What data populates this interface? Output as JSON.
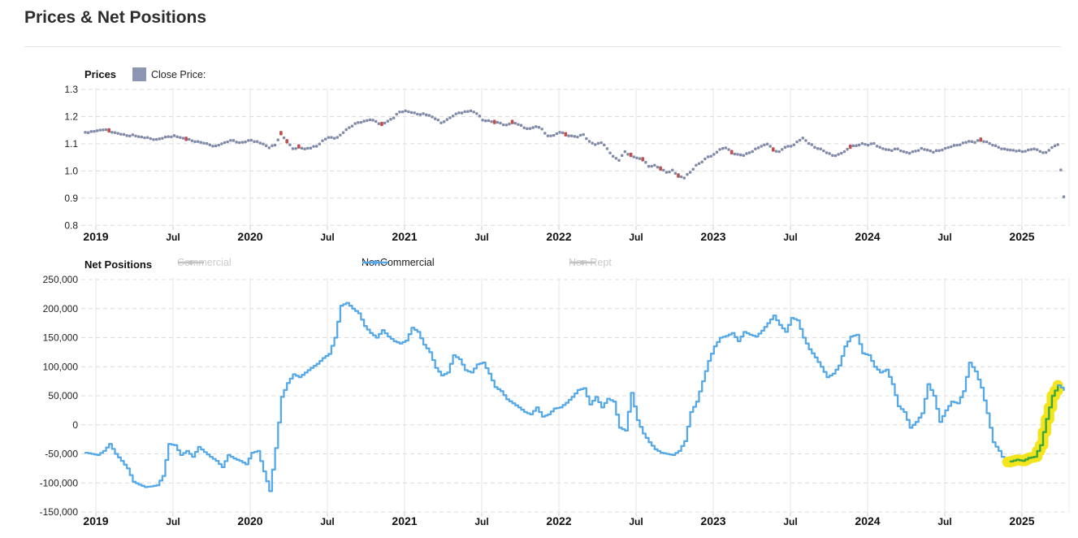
{
  "page": {
    "title": "Prices & Net Positions"
  },
  "prices_chart": {
    "label": "Prices",
    "close_price_label": "Close Price:",
    "legend_swatch_color": "#8C96B2",
    "y_tick_labels": [
      "1.3",
      "1.2",
      "1.1",
      "1.0",
      "0.9",
      "0.8"
    ],
    "x_ticks": [
      {
        "label": "2019",
        "major": true
      },
      {
        "label": "Jul",
        "major": false
      },
      {
        "label": "2020",
        "major": true
      },
      {
        "label": "Jul",
        "major": false
      },
      {
        "label": "2021",
        "major": true
      },
      {
        "label": "Jul",
        "major": false
      },
      {
        "label": "2022",
        "major": true
      },
      {
        "label": "Jul",
        "major": false
      },
      {
        "label": "2023",
        "major": true
      },
      {
        "label": "Jul",
        "major": false
      },
      {
        "label": "2024",
        "major": true
      },
      {
        "label": "Jul",
        "major": false
      },
      {
        "label": "2025",
        "major": true
      }
    ]
  },
  "positions_chart": {
    "label": "Net Positions",
    "legend": [
      {
        "label": "Commercial",
        "color": "#c3c3c3",
        "text_color": "#cbcbcb",
        "active": false
      },
      {
        "label": "NonCommercial",
        "color": "#55A9E8",
        "text_color": "#1b1b1b",
        "active": true
      },
      {
        "label": "Non Rept",
        "color": "#c3c3c3",
        "text_color": "#cbcbcb",
        "active": false
      }
    ],
    "y_tick_labels": [
      "250,000",
      "200,000",
      "150,000",
      "100,000",
      "50,000",
      "0",
      "-50,000",
      "-100,000",
      "-150,000"
    ],
    "x_ticks": [
      {
        "label": "2019",
        "major": true
      },
      {
        "label": "Jul",
        "major": false
      },
      {
        "label": "2020",
        "major": true
      },
      {
        "label": "Jul",
        "major": false
      },
      {
        "label": "2021",
        "major": true
      },
      {
        "label": "Jul",
        "major": false
      },
      {
        "label": "2022",
        "major": true
      },
      {
        "label": "Jul",
        "major": false
      },
      {
        "label": "2023",
        "major": true
      },
      {
        "label": "Jul",
        "major": false
      },
      {
        "label": "2024",
        "major": true
      },
      {
        "label": "Jul",
        "major": false
      },
      {
        "label": "2025",
        "major": true
      }
    ]
  },
  "chart_data": [
    {
      "type": "scatter",
      "title": "Prices",
      "ylabel": "",
      "ylim": [
        0.8,
        1.3
      ],
      "y_ticks": [
        1.3,
        1.2,
        1.1,
        1.0,
        0.9,
        0.8
      ],
      "x_range": "Dec 2018 - May 2025 (biweekly samples)",
      "grid": true,
      "series": [
        {
          "name": "Close Price",
          "color": "#818BA8",
          "values": [
            1.142,
            1.145,
            1.148,
            1.151,
            1.147,
            1.141,
            1.135,
            1.13,
            1.133,
            1.126,
            1.122,
            1.119,
            1.116,
            1.12,
            1.126,
            1.13,
            1.123,
            1.116,
            1.111,
            1.108,
            1.102,
            1.096,
            1.092,
            1.1,
            1.107,
            1.112,
            1.104,
            1.107,
            1.113,
            1.108,
            1.099,
            1.085,
            1.095,
            1.137,
            1.107,
            1.082,
            1.088,
            1.081,
            1.084,
            1.091,
            1.111,
            1.123,
            1.12,
            1.132,
            1.152,
            1.165,
            1.178,
            1.183,
            1.188,
            1.182,
            1.171,
            1.183,
            1.195,
            1.217,
            1.221,
            1.215,
            1.209,
            1.211,
            1.204,
            1.192,
            1.177,
            1.189,
            1.202,
            1.214,
            1.218,
            1.221,
            1.211,
            1.187,
            1.185,
            1.178,
            1.176,
            1.169,
            1.178,
            1.171,
            1.159,
            1.156,
            1.163,
            1.154,
            1.129,
            1.131,
            1.142,
            1.133,
            1.129,
            1.125,
            1.134,
            1.109,
            1.097,
            1.104,
            1.082,
            1.054,
            1.039,
            1.071,
            1.057,
            1.048,
            1.041,
            1.017,
            1.021,
            1.007,
            0.995,
            1.003,
            0.981,
            0.974,
            0.995,
            1.021,
            1.033,
            1.052,
            1.061,
            1.079,
            1.085,
            1.067,
            1.061,
            1.057,
            1.067,
            1.081,
            1.091,
            1.099,
            1.077,
            1.071,
            1.087,
            1.091,
            1.107,
            1.121,
            1.101,
            1.087,
            1.081,
            1.067,
            1.057,
            1.061,
            1.071,
            1.087,
            1.093,
            1.101,
            1.095,
            1.101,
            1.087,
            1.079,
            1.075,
            1.081,
            1.071,
            1.065,
            1.073,
            1.083,
            1.077,
            1.069,
            1.075,
            1.083,
            1.089,
            1.095,
            1.103,
            1.109,
            1.105,
            1.113,
            1.107,
            1.095,
            1.087,
            1.081,
            1.077,
            1.073,
            1.071,
            1.077,
            1.081,
            1.072,
            1.068,
            1.086,
            1.097,
            0.905
          ]
        }
      ],
      "flag_color": "#C0504D",
      "flag_indices": [
        4,
        17,
        33,
        34,
        36,
        50,
        69,
        72,
        81,
        92,
        94,
        97,
        100,
        109,
        116,
        129,
        151
      ]
    },
    {
      "type": "line",
      "title": "Net Positions",
      "ylabel": "",
      "ylim": [
        -150000,
        250000
      ],
      "y_ticks": [
        250000,
        200000,
        150000,
        100000,
        50000,
        0,
        -50000,
        -100000,
        -150000
      ],
      "x_range": "Dec 2018 - May 2025 (biweekly samples, values in contracts)",
      "grid": true,
      "series": [
        {
          "name": "NonCommercial",
          "color": "#55A9E8",
          "visible": true,
          "values": [
            -48000,
            -50000,
            -52000,
            -45000,
            -33000,
            -50000,
            -62000,
            -75000,
            -98000,
            -103000,
            -107000,
            -106000,
            -104000,
            -88000,
            -33000,
            -35000,
            -52000,
            -45000,
            -55000,
            -38000,
            -47000,
            -55000,
            -62000,
            -73000,
            -52000,
            -58000,
            -62000,
            -68000,
            -48000,
            -45000,
            -80000,
            -114000,
            -40000,
            48000,
            72000,
            87000,
            82000,
            90000,
            98000,
            105000,
            115000,
            122000,
            150000,
            205000,
            210000,
            200000,
            192000,
            170000,
            158000,
            150000,
            163000,
            152000,
            144000,
            140000,
            145000,
            167000,
            160000,
            138000,
            125000,
            98000,
            85000,
            90000,
            120000,
            113000,
            94000,
            90000,
            104000,
            107000,
            88000,
            65000,
            58000,
            44000,
            37000,
            30000,
            22000,
            18000,
            30000,
            14000,
            18000,
            28000,
            30000,
            38000,
            48000,
            60000,
            63000,
            35000,
            48000,
            30000,
            45000,
            40000,
            -5000,
            -10000,
            55000,
            8000,
            -15000,
            -30000,
            -42000,
            -48000,
            -50000,
            -52000,
            -45000,
            -28000,
            22000,
            40000,
            75000,
            110000,
            135000,
            150000,
            153000,
            158000,
            144000,
            160000,
            155000,
            152000,
            162000,
            175000,
            188000,
            172000,
            160000,
            184000,
            180000,
            150000,
            130000,
            116000,
            100000,
            82000,
            88000,
            102000,
            135000,
            152000,
            155000,
            123000,
            120000,
            100000,
            90000,
            95000,
            70000,
            32000,
            22000,
            -5000,
            5000,
            20000,
            70000,
            50000,
            5000,
            25000,
            40000,
            37000,
            58000,
            107000,
            92000,
            64000,
            20000,
            -30000,
            -45000,
            -65000,
            -63000,
            -60000,
            -62000,
            -57000,
            -55000,
            -35000,
            10000,
            50000,
            68000,
            60000
          ]
        },
        {
          "name": "Commercial",
          "color": "#c3c3c3",
          "visible": false,
          "values": []
        },
        {
          "name": "Non Rept",
          "color": "#c3c3c3",
          "visible": false,
          "values": []
        }
      ],
      "highlight": {
        "series": "NonCommercial",
        "start_index": 156,
        "end_index": 164,
        "line_color": "#3CA53C",
        "band_color": "#F4E41C"
      }
    }
  ]
}
